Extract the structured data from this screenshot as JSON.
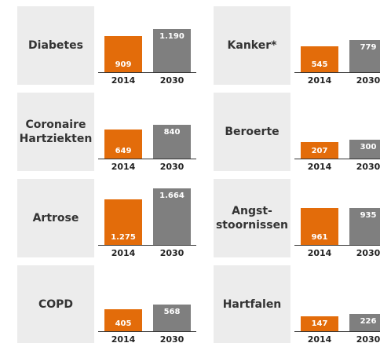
{
  "chart_data": [
    {
      "type": "bar",
      "title": "Diabetes",
      "categories": [
        "2014",
        "2030"
      ],
      "values": [
        909,
        1190
      ],
      "value_labels": [
        "909",
        "1.190"
      ],
      "colors": [
        "#e36c0a",
        "#7f7f7f"
      ]
    },
    {
      "type": "bar",
      "title": "Kanker*",
      "categories": [
        "2014",
        "2030"
      ],
      "values": [
        545,
        779
      ],
      "value_labels": [
        "545",
        "779"
      ],
      "colors": [
        "#e36c0a",
        "#7f7f7f"
      ]
    },
    {
      "type": "bar",
      "title": "Coronaire\nHartziekten",
      "categories": [
        "2014",
        "2030"
      ],
      "values": [
        649,
        840
      ],
      "value_labels": [
        "649",
        "840"
      ],
      "colors": [
        "#e36c0a",
        "#7f7f7f"
      ]
    },
    {
      "type": "bar",
      "title": "Beroerte",
      "categories": [
        "2014",
        "2030"
      ],
      "values": [
        207,
        300
      ],
      "value_labels": [
        "207",
        "300"
      ],
      "colors": [
        "#e36c0a",
        "#7f7f7f"
      ]
    },
    {
      "type": "bar",
      "title": "Artrose",
      "categories": [
        "2014",
        "2030"
      ],
      "values": [
        1275,
        1664
      ],
      "value_labels": [
        "1.275",
        "1.664"
      ],
      "colors": [
        "#e36c0a",
        "#7f7f7f"
      ]
    },
    {
      "type": "bar",
      "title": "Angst-\nstoornissen",
      "categories": [
        "2014",
        "2030"
      ],
      "values": [
        961,
        935
      ],
      "value_labels": [
        "961",
        "935"
      ],
      "colors": [
        "#e36c0a",
        "#7f7f7f"
      ]
    },
    {
      "type": "bar",
      "title": "COPD",
      "categories": [
        "2014",
        "2030"
      ],
      "values": [
        405,
        568
      ],
      "value_labels": [
        "405",
        "568"
      ],
      "colors": [
        "#e36c0a",
        "#7f7f7f"
      ]
    },
    {
      "type": "bar",
      "title": "Hartfalen",
      "categories": [
        "2014",
        "2030"
      ],
      "values": [
        147,
        226
      ],
      "value_labels": [
        "147",
        "226"
      ],
      "colors": [
        "#e36c0a",
        "#7f7f7f"
      ]
    }
  ]
}
